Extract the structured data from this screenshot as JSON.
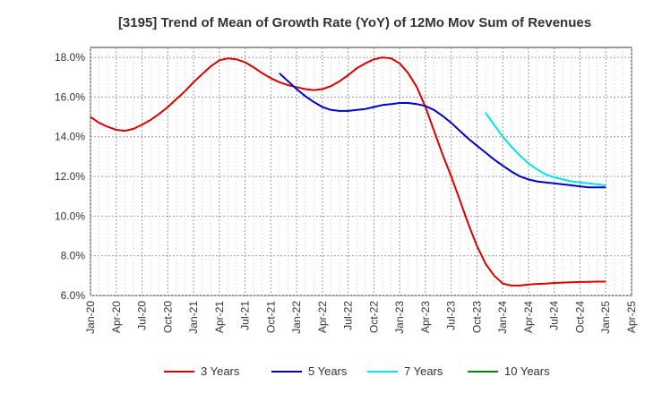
{
  "chart_data": {
    "type": "line",
    "title": "[3195]  Trend of Mean of Growth Rate (YoY) of 12Mo Mov Sum of Revenues",
    "xlabel": "",
    "ylabel": "",
    "x_ticks": [
      "Jan-20",
      "Apr-20",
      "Jul-20",
      "Oct-20",
      "Jan-21",
      "Apr-21",
      "Jul-21",
      "Oct-21",
      "Jan-22",
      "Apr-22",
      "Jul-22",
      "Oct-22",
      "Jan-23",
      "Apr-23",
      "Jul-23",
      "Oct-23",
      "Jan-24",
      "Apr-24",
      "Jul-24",
      "Oct-24",
      "Jan-25",
      "Apr-25"
    ],
    "y_ticks": [
      "6.0%",
      "8.0%",
      "10.0%",
      "12.0%",
      "14.0%",
      "16.0%",
      "18.0%"
    ],
    "ylim": [
      6.0,
      18.5
    ],
    "xlim": [
      0,
      63
    ],
    "grid": true,
    "legend_position": "bottom",
    "series": [
      {
        "name": "3 Years",
        "color": "#dd0000",
        "x": [
          0,
          1,
          2,
          3,
          4,
          5,
          6,
          7,
          8,
          9,
          10,
          11,
          12,
          13,
          14,
          15,
          16,
          17,
          18,
          19,
          20,
          21,
          22,
          23,
          24,
          25,
          26,
          27,
          28,
          29,
          30,
          31,
          32,
          33,
          34,
          35,
          36,
          37,
          38,
          39,
          40,
          41,
          42,
          43,
          44,
          45,
          46,
          47,
          48,
          49,
          50,
          51,
          52,
          53,
          54,
          55,
          56,
          57,
          58,
          59,
          60
        ],
        "values": [
          15.0,
          14.7,
          14.5,
          14.35,
          14.3,
          14.4,
          14.6,
          14.85,
          15.15,
          15.5,
          15.9,
          16.3,
          16.75,
          17.15,
          17.55,
          17.85,
          17.95,
          17.9,
          17.75,
          17.5,
          17.2,
          16.95,
          16.75,
          16.6,
          16.5,
          16.4,
          16.35,
          16.4,
          16.55,
          16.8,
          17.1,
          17.45,
          17.7,
          17.9,
          18.0,
          17.95,
          17.7,
          17.2,
          16.5,
          15.5,
          14.3,
          13.1,
          12.0,
          10.8,
          9.6,
          8.5,
          7.6,
          7.0,
          6.6,
          6.5,
          6.5,
          6.55,
          6.58,
          6.6,
          6.63,
          6.65,
          6.67,
          6.68,
          6.69,
          6.7,
          6.7
        ]
      },
      {
        "name": "5 Years",
        "color": "#0000cc",
        "x": [
          22,
          23,
          24,
          25,
          26,
          27,
          28,
          29,
          30,
          31,
          32,
          33,
          34,
          35,
          36,
          37,
          38,
          39,
          40,
          41,
          42,
          43,
          44,
          45,
          46,
          47,
          48,
          49,
          50,
          51,
          52,
          53,
          54,
          55,
          56,
          57,
          58,
          59,
          60
        ],
        "values": [
          17.2,
          16.8,
          16.4,
          16.05,
          15.75,
          15.5,
          15.35,
          15.3,
          15.3,
          15.35,
          15.4,
          15.5,
          15.6,
          15.65,
          15.7,
          15.7,
          15.65,
          15.55,
          15.35,
          15.05,
          14.7,
          14.3,
          13.9,
          13.55,
          13.2,
          12.85,
          12.55,
          12.25,
          12.0,
          11.85,
          11.75,
          11.7,
          11.65,
          11.6,
          11.55,
          11.5,
          11.45,
          11.45,
          11.45
        ]
      },
      {
        "name": "7 Years",
        "color": "#00e5ee",
        "x": [
          46,
          47,
          48,
          49,
          50,
          51,
          52,
          53,
          54,
          55,
          56,
          57,
          58,
          59,
          60
        ],
        "values": [
          15.2,
          14.6,
          14.0,
          13.5,
          13.05,
          12.65,
          12.35,
          12.1,
          11.95,
          11.85,
          11.75,
          11.7,
          11.65,
          11.6,
          11.55
        ]
      },
      {
        "name": "10 Years",
        "color": "#008800",
        "x": [],
        "values": []
      }
    ]
  }
}
